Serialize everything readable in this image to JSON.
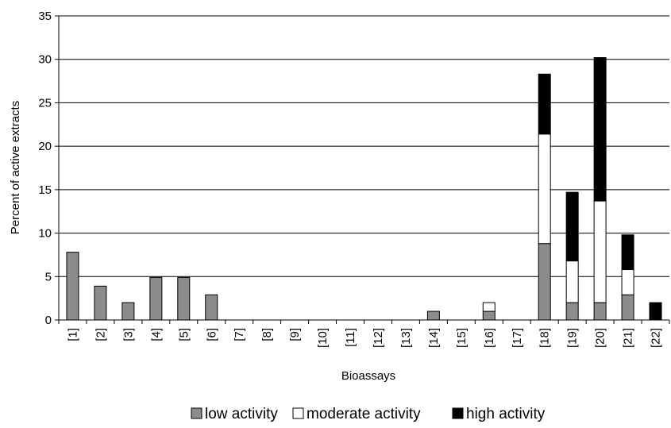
{
  "chart_data": {
    "type": "bar",
    "stacked": true,
    "title": "",
    "xlabel": "Bioassays",
    "ylabel": "Percent of active extracts",
    "ylim": [
      0,
      35
    ],
    "yticks": [
      0,
      5,
      10,
      15,
      20,
      25,
      30,
      35
    ],
    "grid": true,
    "legend_position": "bottom",
    "categories": [
      "[1]",
      "[2]",
      "[3]",
      "[4]",
      "[5]",
      "[6]",
      "[7]",
      "[8]",
      "[9]",
      "[10]",
      "[11]",
      "[12]",
      "[13]",
      "[14]",
      "[15]",
      "[16]",
      "[17]",
      "[18]",
      "[19]",
      "[20]",
      "[21]",
      "[22]"
    ],
    "series": [
      {
        "name": "low activity",
        "color": "#8c8c8c",
        "values": [
          7.8,
          3.9,
          2,
          4.9,
          4.9,
          2.9,
          0,
          0,
          0,
          0,
          0,
          0,
          0,
          1,
          0,
          1,
          0,
          8.8,
          2,
          2,
          2.9,
          0
        ]
      },
      {
        "name": "moderate activity",
        "color": "#ffffff",
        "values": [
          0,
          0,
          0,
          0,
          0,
          0,
          0,
          0,
          0,
          0,
          0,
          0,
          0,
          0,
          0,
          1,
          0,
          12.6,
          4.8,
          11.7,
          2.9,
          0
        ]
      },
      {
        "name": "high activity",
        "color": "#000000",
        "values": [
          0,
          0,
          0,
          0,
          0,
          0,
          0,
          0,
          0,
          0,
          0,
          0,
          0,
          0,
          0,
          0,
          0,
          6.9,
          7.9,
          16.5,
          4,
          2
        ]
      }
    ]
  }
}
